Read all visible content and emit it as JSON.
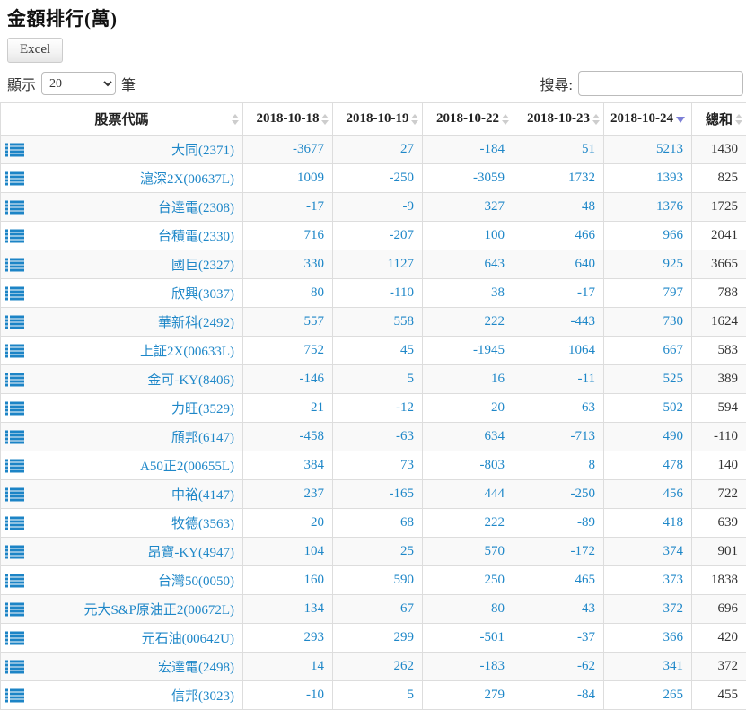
{
  "page": {
    "title": "金額排行(萬)",
    "excel_button": "Excel",
    "show_label": "顯示",
    "show_value": "20",
    "entries_label": "筆",
    "search_label": "搜尋:",
    "search_value": ""
  },
  "colors": {
    "link_blue": "#1e87c8",
    "sort_active": "#7c7fd6",
    "sort_inactive": "#cdcdcd",
    "stripe_gray": "#f9f9f9",
    "border_gray": "#dddddd"
  },
  "icons": {
    "row_icon": "list-icon",
    "sort_inactive_icon": "sort-both-icon",
    "sort_desc_icon": "sort-desc-icon"
  },
  "table": {
    "columns": [
      {
        "key": "stock",
        "label": "股票代碼",
        "sort": "none"
      },
      {
        "key": "d1018",
        "label": "2018-10-18",
        "sort": "none"
      },
      {
        "key": "d1019",
        "label": "2018-10-19",
        "sort": "none"
      },
      {
        "key": "d1022",
        "label": "2018-10-22",
        "sort": "none"
      },
      {
        "key": "d1023",
        "label": "2018-10-23",
        "sort": "none"
      },
      {
        "key": "d1024",
        "label": "2018-10-24",
        "sort": "desc"
      },
      {
        "key": "total",
        "label": "總和",
        "sort": "none"
      }
    ],
    "rows": [
      {
        "name": "大同(2371)",
        "values": [
          -3677,
          27,
          -184,
          51,
          5213
        ],
        "total": 1430
      },
      {
        "name": "滬深2X(00637L)",
        "values": [
          1009,
          -250,
          -3059,
          1732,
          1393
        ],
        "total": 825
      },
      {
        "name": "台達電(2308)",
        "values": [
          -17,
          -9,
          327,
          48,
          1376
        ],
        "total": 1725
      },
      {
        "name": "台積電(2330)",
        "values": [
          716,
          -207,
          100,
          466,
          966
        ],
        "total": 2041
      },
      {
        "name": "國巨(2327)",
        "values": [
          330,
          1127,
          643,
          640,
          925
        ],
        "total": 3665
      },
      {
        "name": "欣興(3037)",
        "values": [
          80,
          -110,
          38,
          -17,
          797
        ],
        "total": 788
      },
      {
        "name": "華新科(2492)",
        "values": [
          557,
          558,
          222,
          -443,
          730
        ],
        "total": 1624
      },
      {
        "name": "上証2X(00633L)",
        "values": [
          752,
          45,
          -1945,
          1064,
          667
        ],
        "total": 583
      },
      {
        "name": "金可-KY(8406)",
        "values": [
          -146,
          5,
          16,
          -11,
          525
        ],
        "total": 389
      },
      {
        "name": "力旺(3529)",
        "values": [
          21,
          -12,
          20,
          63,
          502
        ],
        "total": 594
      },
      {
        "name": "頎邦(6147)",
        "values": [
          -458,
          -63,
          634,
          -713,
          490
        ],
        "total": -110
      },
      {
        "name": "A50正2(00655L)",
        "values": [
          384,
          73,
          -803,
          8,
          478
        ],
        "total": 140
      },
      {
        "name": "中裕(4147)",
        "values": [
          237,
          -165,
          444,
          -250,
          456
        ],
        "total": 722
      },
      {
        "name": "牧德(3563)",
        "values": [
          20,
          68,
          222,
          -89,
          418
        ],
        "total": 639
      },
      {
        "name": "昂寶-KY(4947)",
        "values": [
          104,
          25,
          570,
          -172,
          374
        ],
        "total": 901
      },
      {
        "name": "台灣50(0050)",
        "values": [
          160,
          590,
          250,
          465,
          373
        ],
        "total": 1838
      },
      {
        "name": "元大S&P原油正2(00672L)",
        "values": [
          134,
          67,
          80,
          43,
          372
        ],
        "total": 696
      },
      {
        "name": "元石油(00642U)",
        "values": [
          293,
          299,
          -501,
          -37,
          366
        ],
        "total": 420
      },
      {
        "name": "宏達電(2498)",
        "values": [
          14,
          262,
          -183,
          -62,
          341
        ],
        "total": 372
      },
      {
        "name": "信邦(3023)",
        "values": [
          -10,
          5,
          279,
          -84,
          265
        ],
        "total": 455
      }
    ]
  }
}
